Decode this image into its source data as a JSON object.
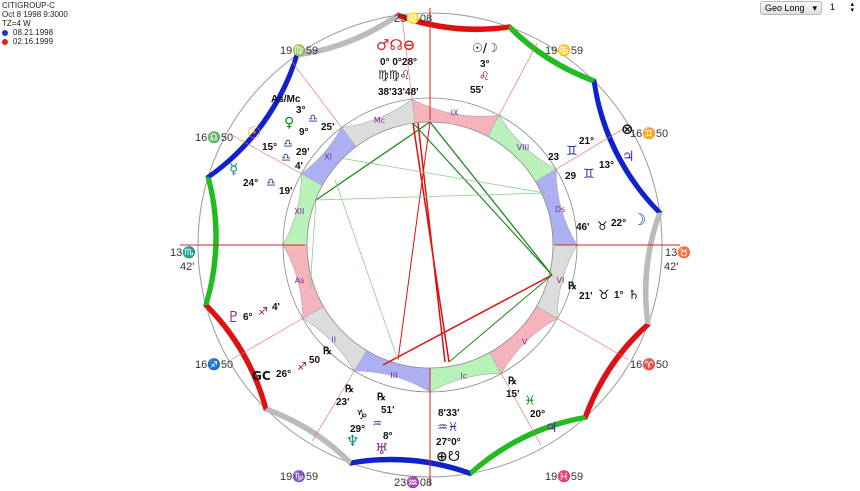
{
  "info": {
    "title": "CITIGROUP-C",
    "date": "Oct 8 1998 9:3000",
    "tz": "TZ=4 W",
    "transits": [
      {
        "date": "08.21.1998",
        "color": "#2233cc"
      },
      {
        "date": "02.16.1999",
        "color": "#dd2222"
      }
    ]
  },
  "control": {
    "mode": "Geo Long",
    "value": "1"
  },
  "houses": [
    {
      "label": "Mc",
      "color": "#dcdcdc"
    },
    {
      "label": "IX",
      "color": "#f5b3bb"
    },
    {
      "label": "VIII",
      "color": "#b9f2b9"
    },
    {
      "label": "Ds",
      "color": "#aab0f2"
    },
    {
      "label": "VI",
      "color": "#dcdcdc"
    },
    {
      "label": "V",
      "color": "#f5b3bb"
    },
    {
      "label": "Ic",
      "color": "#b9f2b9"
    },
    {
      "label": "III",
      "color": "#aab0f2"
    },
    {
      "label": "II",
      "color": "#dcdcdc"
    },
    {
      "label": "As",
      "color": "#f5b3bb"
    },
    {
      "label": "XII",
      "color": "#b9f2b9"
    },
    {
      "label": "XI",
      "color": "#aab0f2"
    }
  ],
  "element_colors": {
    "fire": "#dd1111",
    "earth": "#22bb22",
    "air": "#1122cc",
    "water": "#bbbbbb"
  },
  "cusps": {
    "top": "23♌08",
    "c11": "19♍59",
    "c9": "19♋59",
    "c12": "16♎50",
    "c8": "16♊50",
    "asc_deg": "13♏",
    "asc_min": "42'",
    "ds_deg": "13♉",
    "ds_min": "42'",
    "c2": "16♐50",
    "c6": "16♈50",
    "c3": "19♑59",
    "c5": "19♓59",
    "bottom": "23♒08"
  },
  "planets": {
    "mars_group": {
      "glyphs": "♂☊⊖",
      "deg": "0° 0°28°",
      "signs": "♍♍♌",
      "min": "38'33'48'"
    },
    "sun_moon": {
      "glyph": "☉/☽",
      "deg": "3°",
      "sign": "♌",
      "min": "55'"
    },
    "asmc": {
      "label": "As/Mc",
      "deg": "3°",
      "sign": "♎",
      "min": "25'"
    },
    "venus": {
      "glyph": "♀",
      "deg": "9°",
      "sign": "♎",
      "min": "29'"
    },
    "sun": {
      "glyph": "☉",
      "deg": "15°",
      "sign": "♎",
      "min": "4'"
    },
    "mercury": {
      "glyph": "☿",
      "deg": "24°",
      "sign": "♎",
      "min": "19'"
    },
    "fortune": {
      "glyph": "⊗",
      "deg": "21°",
      "sign": "♊",
      "min": "23"
    },
    "jupiter_r": {
      "glyph": "♃",
      "deg": "13°",
      "sign": "♊",
      "min": "29"
    },
    "moon": {
      "glyph": "☽",
      "deg": "22°",
      "sign": "♉",
      "min": "46'"
    },
    "saturn": {
      "glyph": "♄",
      "retro": "℞",
      "deg": "1°",
      "sign": "♉",
      "min": "21'"
    },
    "pluto": {
      "glyph": "♇",
      "deg": "6°",
      "sign": "♐",
      "min": "4'"
    },
    "gc": {
      "glyph": "GC",
      "deg": "26°",
      "sign": "♐",
      "min": "50",
      "retro": "℞"
    },
    "neptune": {
      "glyph": "♆",
      "retro": "℞",
      "deg": "29°",
      "sign": "♑",
      "min": "23'"
    },
    "uranus": {
      "glyph": "♅",
      "retro": "℞",
      "deg": "8°",
      "sign": "♒",
      "min": "51'"
    },
    "node_group": {
      "glyphs": "⊕☋",
      "deg": "27°0°",
      "signs": "♒♓",
      "min": "8'33'"
    },
    "jupiter": {
      "glyph": "♃",
      "retro": "℞",
      "deg": "20°",
      "sign": "♓",
      "min": "15'"
    }
  }
}
